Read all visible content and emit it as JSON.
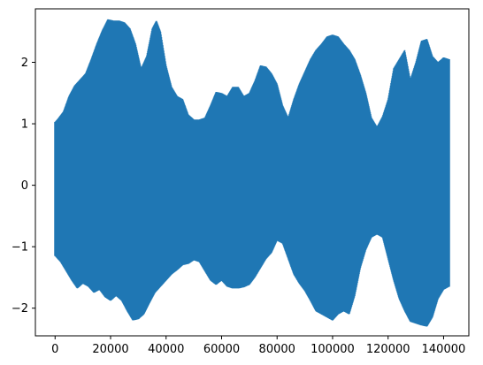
{
  "chart_data": {
    "type": "line",
    "title": "",
    "xlabel": "",
    "ylabel": "",
    "xlim": [
      -7100,
      149100
    ],
    "ylim": [
      -2.45,
      2.87
    ],
    "x_ticks": [
      0,
      20000,
      40000,
      60000,
      80000,
      100000,
      120000,
      140000
    ],
    "x_tick_labels": [
      "0",
      "20000",
      "40000",
      "60000",
      "80000",
      "100000",
      "120000",
      "140000"
    ],
    "y_ticks": [
      -2,
      -1,
      0,
      1,
      2
    ],
    "y_tick_labels": [
      "−2",
      "−1",
      "0",
      "1",
      "2"
    ],
    "grid": false,
    "series": [
      {
        "color": "#1f77b4",
        "sample_count": 142000,
        "upper_envelope": {
          "x": [
            0,
            1000,
            3000,
            5000,
            7000,
            9000,
            11000,
            13000,
            15000,
            17000,
            19000,
            21000,
            23000,
            25000,
            27000,
            29000,
            31000,
            33000,
            35000,
            36500,
            38000,
            40000,
            42000,
            44000,
            46000,
            48000,
            50000,
            52000,
            54000,
            56000,
            58000,
            60000,
            62000,
            64000,
            66000,
            68000,
            70000,
            72000,
            74000,
            76000,
            78000,
            80000,
            82000,
            84000,
            86000,
            88000,
            90000,
            92000,
            94000,
            96000,
            98000,
            100000,
            102000,
            104000,
            106000,
            108000,
            110000,
            112000,
            114000,
            116000,
            118000,
            120000,
            122000,
            124000,
            126000,
            128000,
            130000,
            132000,
            134000,
            136000,
            138000,
            140000,
            142000
          ],
          "y": [
            1.03,
            1.08,
            1.2,
            1.45,
            1.62,
            1.72,
            1.82,
            2.05,
            2.3,
            2.52,
            2.7,
            2.68,
            2.68,
            2.65,
            2.55,
            2.3,
            1.9,
            2.1,
            2.55,
            2.68,
            2.5,
            1.95,
            1.6,
            1.45,
            1.4,
            1.15,
            1.07,
            1.07,
            1.1,
            1.3,
            1.52,
            1.5,
            1.45,
            1.6,
            1.6,
            1.45,
            1.5,
            1.7,
            1.95,
            1.93,
            1.82,
            1.65,
            1.3,
            1.1,
            1.4,
            1.65,
            1.85,
            2.05,
            2.2,
            2.3,
            2.42,
            2.45,
            2.42,
            2.3,
            2.2,
            2.05,
            1.8,
            1.5,
            1.1,
            0.95,
            1.12,
            1.4,
            1.9,
            2.05,
            2.2,
            1.72,
            2.0,
            2.35,
            2.38,
            2.1,
            2.0,
            2.08,
            2.05
          ]
        },
        "lower_envelope": {
          "x": [
            0,
            2000,
            4000,
            6000,
            8000,
            10000,
            12000,
            14000,
            16000,
            18000,
            20000,
            22000,
            24000,
            26000,
            28000,
            30000,
            32000,
            34000,
            36000,
            38000,
            40000,
            42000,
            44000,
            46000,
            48000,
            50000,
            52000,
            54000,
            56000,
            58000,
            60000,
            62000,
            64000,
            66000,
            68000,
            70000,
            72000,
            74000,
            76000,
            78000,
            80000,
            82000,
            84000,
            86000,
            88000,
            90000,
            92000,
            94000,
            96000,
            98000,
            100000,
            102000,
            104000,
            106000,
            108000,
            110000,
            112000,
            114000,
            116000,
            118000,
            120000,
            122000,
            124000,
            126000,
            128000,
            130000,
            132000,
            134000,
            136000,
            138000,
            140000,
            142000
          ],
          "y": [
            -1.15,
            -1.25,
            -1.4,
            -1.55,
            -1.68,
            -1.6,
            -1.65,
            -1.75,
            -1.7,
            -1.82,
            -1.88,
            -1.8,
            -1.88,
            -2.05,
            -2.2,
            -2.18,
            -2.1,
            -1.92,
            -1.75,
            -1.65,
            -1.55,
            -1.45,
            -1.38,
            -1.3,
            -1.28,
            -1.22,
            -1.25,
            -1.4,
            -1.55,
            -1.62,
            -1.55,
            -1.65,
            -1.68,
            -1.68,
            -1.66,
            -1.62,
            -1.5,
            -1.35,
            -1.2,
            -1.1,
            -0.9,
            -0.95,
            -1.2,
            -1.45,
            -1.6,
            -1.72,
            -1.88,
            -2.05,
            -2.1,
            -2.15,
            -2.2,
            -2.1,
            -2.05,
            -2.1,
            -1.8,
            -1.35,
            -1.05,
            -0.85,
            -0.8,
            -0.85,
            -1.2,
            -1.55,
            -1.85,
            -2.05,
            -2.22,
            -2.25,
            -2.28,
            -2.3,
            -2.15,
            -1.85,
            -1.7,
            -1.65
          ]
        }
      }
    ]
  }
}
